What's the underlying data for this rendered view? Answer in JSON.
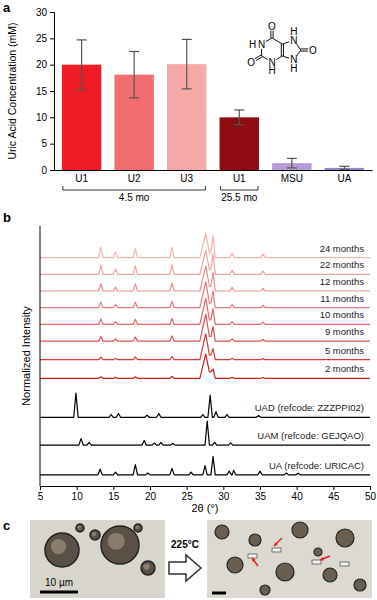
{
  "chart_data": [
    {
      "panel_label": "a",
      "type": "bar",
      "ylabel": "Uric Acid Concentration (mM)",
      "categories": [
        "U1",
        "U2",
        "U3",
        "U1",
        "MSU",
        "UA"
      ],
      "values": [
        20.0,
        18.1,
        20.1,
        10.0,
        1.3,
        0.4
      ],
      "errors": [
        4.7,
        4.4,
        4.7,
        1.4,
        0.9,
        0.3
      ],
      "colors": [
        "#ee1c25",
        "#f26d6f",
        "#f7a9a8",
        "#8e0c11",
        "#b49ad8",
        "#8f86c8"
      ],
      "ylim": [
        0,
        30
      ],
      "yticks": [
        0,
        5,
        10,
        15,
        20,
        25,
        30
      ],
      "annotations": [
        {
          "text": "4.5 mo",
          "from": 0,
          "to": 2
        },
        {
          "text": "25.5 mo",
          "from": 3,
          "to": 3
        }
      ],
      "structure_labels": [
        "O",
        "O",
        "O",
        "N",
        "H",
        "N",
        "H",
        "N",
        "H",
        "N",
        "H"
      ]
    },
    {
      "panel_label": "b",
      "type": "line",
      "xlabel": "2θ (°)",
      "ylabel": "Normalized Intensity",
      "xlim": [
        5,
        50
      ],
      "xticks": [
        5,
        10,
        15,
        20,
        25,
        30,
        35,
        40,
        45,
        50
      ],
      "ylim": [
        0,
        14
      ],
      "tick_labels": "x",
      "series": [
        {
          "name": "24 months",
          "color": "#f4b3b3",
          "x": [
            5,
            13.0,
            13.3,
            13.6,
            15.0,
            15.3,
            15.6,
            17.7,
            18.0,
            18.3,
            22.7,
            23.0,
            23.3,
            26.8,
            27.6,
            28.1,
            28.3,
            28.6,
            28.9,
            30.9,
            31.2,
            31.5,
            35.1,
            35.4,
            35.7,
            50
          ],
          "values": [
            12.3,
            12.3,
            12.85,
            12.3,
            12.3,
            12.6,
            12.3,
            12.3,
            12.8,
            12.3,
            12.3,
            12.85,
            12.3,
            12.3,
            13.6,
            12.55,
            12.55,
            13.5,
            12.3,
            12.3,
            12.55,
            12.3,
            12.3,
            12.5,
            12.3,
            12.3
          ]
        },
        {
          "name": "22 months",
          "color": "#f0a2a2",
          "x": [
            5,
            13.0,
            13.3,
            13.6,
            15.0,
            15.3,
            15.6,
            17.7,
            18.0,
            18.3,
            22.7,
            23.0,
            23.3,
            26.8,
            27.6,
            28.1,
            28.3,
            28.6,
            28.9,
            30.9,
            31.2,
            31.5,
            35.1,
            35.4,
            35.7,
            50
          ],
          "values": [
            11.4,
            11.4,
            11.9,
            11.4,
            11.4,
            11.68,
            11.4,
            11.4,
            11.85,
            11.4,
            11.4,
            11.9,
            11.4,
            11.4,
            12.7,
            11.65,
            11.65,
            12.5,
            11.4,
            11.4,
            11.62,
            11.4,
            11.4,
            11.58,
            11.4,
            11.4
          ]
        },
        {
          "name": "12 months",
          "color": "#ec8f8f",
          "x": [
            5,
            13.0,
            13.3,
            13.6,
            15.0,
            15.3,
            15.6,
            17.7,
            18.0,
            18.3,
            22.7,
            23.0,
            23.3,
            26.8,
            27.6,
            28.1,
            28.3,
            28.6,
            28.9,
            30.9,
            31.2,
            31.5,
            35.1,
            35.4,
            35.7,
            50
          ],
          "values": [
            10.5,
            10.5,
            10.9,
            10.5,
            10.5,
            10.72,
            10.5,
            10.5,
            10.88,
            10.5,
            10.5,
            10.92,
            10.5,
            10.5,
            11.85,
            10.75,
            10.75,
            11.5,
            10.5,
            10.5,
            10.7,
            10.5,
            10.5,
            10.65,
            10.5,
            10.5
          ]
        },
        {
          "name": "11 months",
          "color": "#e87b7b",
          "x": [
            5,
            13.0,
            13.3,
            13.6,
            15.0,
            15.3,
            15.6,
            17.7,
            18.0,
            18.3,
            22.7,
            23.0,
            23.3,
            26.8,
            27.6,
            28.1,
            28.3,
            28.6,
            28.9,
            30.9,
            31.2,
            31.5,
            35.1,
            35.4,
            35.7,
            50
          ],
          "values": [
            9.6,
            9.6,
            9.9,
            9.6,
            9.6,
            9.78,
            9.6,
            9.6,
            9.9,
            9.6,
            9.6,
            9.95,
            9.6,
            9.6,
            11.0,
            9.85,
            9.85,
            10.5,
            9.6,
            9.6,
            9.78,
            9.6,
            9.6,
            9.72,
            9.6,
            9.6
          ]
        },
        {
          "name": "10 months",
          "color": "#e46666",
          "x": [
            5,
            13.0,
            13.3,
            13.6,
            15.0,
            15.3,
            15.6,
            17.7,
            18.0,
            18.3,
            22.7,
            23.0,
            23.3,
            26.8,
            27.6,
            28.1,
            28.3,
            28.6,
            28.9,
            30.9,
            31.2,
            31.5,
            35.1,
            35.4,
            35.7,
            50
          ],
          "values": [
            8.7,
            8.7,
            9.0,
            8.7,
            8.7,
            8.85,
            8.7,
            8.7,
            8.98,
            8.7,
            8.7,
            9.02,
            8.7,
            8.7,
            10.1,
            8.95,
            8.95,
            9.55,
            8.7,
            8.7,
            8.85,
            8.7,
            8.7,
            8.82,
            8.7,
            8.7
          ]
        },
        {
          "name": "9 months",
          "color": "#df5151",
          "x": [
            5,
            13.0,
            13.3,
            13.6,
            15.0,
            15.3,
            15.6,
            17.7,
            18.0,
            18.3,
            22.7,
            23.0,
            23.3,
            26.8,
            27.6,
            28.1,
            28.3,
            28.6,
            28.9,
            30.9,
            31.2,
            31.5,
            35.1,
            35.4,
            35.7,
            50
          ],
          "values": [
            7.8,
            7.8,
            8.05,
            7.8,
            7.8,
            7.92,
            7.8,
            7.8,
            8.02,
            7.8,
            7.8,
            8.08,
            7.8,
            7.8,
            9.25,
            8.05,
            8.05,
            8.6,
            7.8,
            7.8,
            7.92,
            7.8,
            7.8,
            7.9,
            7.8,
            7.8
          ]
        },
        {
          "name": "5 months",
          "color": "#da3a3a",
          "x": [
            5,
            13.0,
            13.3,
            13.6,
            15.0,
            15.3,
            15.6,
            17.7,
            18.0,
            18.3,
            22.7,
            23.0,
            23.3,
            26.8,
            27.6,
            28.1,
            28.3,
            28.6,
            28.9,
            30.9,
            31.2,
            31.5,
            35.1,
            35.4,
            35.7,
            50
          ],
          "values": [
            6.8,
            6.8,
            6.95,
            6.8,
            6.8,
            6.88,
            6.8,
            6.8,
            6.95,
            6.8,
            6.8,
            6.98,
            6.8,
            6.8,
            8.2,
            7.05,
            7.05,
            7.4,
            6.8,
            6.8,
            6.88,
            6.8,
            6.8,
            6.86,
            6.8,
            6.8
          ]
        },
        {
          "name": "2 months",
          "color": "#d21f1f",
          "x": [
            5,
            13.0,
            13.3,
            13.6,
            15.0,
            15.3,
            15.6,
            17.7,
            18.0,
            18.3,
            22.7,
            23.0,
            23.3,
            26.8,
            27.6,
            28.1,
            28.3,
            28.6,
            28.9,
            30.9,
            31.2,
            31.5,
            35.1,
            35.4,
            35.7,
            50
          ],
          "values": [
            5.8,
            5.8,
            5.88,
            5.8,
            5.8,
            5.85,
            5.8,
            5.8,
            5.88,
            5.8,
            5.8,
            5.9,
            5.8,
            5.8,
            7.1,
            6.15,
            6.15,
            6.3,
            5.8,
            5.8,
            5.85,
            5.8,
            5.8,
            5.84,
            5.8,
            5.8
          ]
        },
        {
          "name": "UAD (refcode: ZZZPPI02)",
          "color": "#000000",
          "x": [
            5,
            9.6,
            9.9,
            10.2,
            14.4,
            14.7,
            15.0,
            15.4,
            15.7,
            16.0,
            19.3,
            19.6,
            19.9,
            20.9,
            21.2,
            21.5,
            26.9,
            27.2,
            27.5,
            27.9,
            28.2,
            28.5,
            28.7,
            29.0,
            29.3,
            30.2,
            30.5,
            30.8,
            34.5,
            34.8,
            35.1,
            50
          ],
          "values": [
            3.7,
            3.7,
            5.0,
            3.7,
            3.7,
            3.85,
            3.7,
            3.7,
            3.9,
            3.7,
            3.7,
            3.82,
            3.7,
            3.7,
            3.9,
            3.7,
            3.7,
            3.85,
            3.7,
            3.7,
            4.9,
            3.7,
            3.7,
            4.0,
            3.7,
            3.7,
            3.85,
            3.7,
            3.7,
            3.8,
            3.7,
            3.7
          ]
        },
        {
          "name": "UAM (refcode: GEJQAO)",
          "color": "#000000",
          "x": [
            5,
            10.3,
            10.6,
            10.9,
            11.4,
            11.7,
            12.0,
            18.9,
            19.2,
            19.5,
            20.3,
            20.6,
            20.9,
            21.2,
            21.5,
            21.8,
            22.8,
            23.1,
            23.4,
            27.5,
            27.8,
            28.1,
            28.5,
            28.8,
            29.1,
            30.7,
            31.0,
            31.3,
            50
          ],
          "values": [
            2.2,
            2.2,
            2.55,
            2.2,
            2.2,
            2.35,
            2.2,
            2.2,
            2.45,
            2.2,
            2.2,
            2.32,
            2.2,
            2.2,
            2.35,
            2.2,
            2.2,
            2.3,
            2.2,
            2.2,
            3.5,
            2.2,
            2.2,
            2.35,
            2.2,
            2.2,
            2.32,
            2.2,
            2.2
          ]
        },
        {
          "name": "UA (refcode: URICAC)",
          "color": "#000000",
          "x": [
            5,
            12.9,
            13.2,
            13.5,
            15.0,
            15.3,
            15.6,
            17.7,
            18.0,
            18.3,
            19.4,
            19.7,
            20.0,
            22.7,
            23.0,
            23.3,
            25.3,
            25.6,
            25.9,
            27.2,
            27.5,
            27.8,
            28.3,
            28.6,
            28.9,
            30.5,
            30.8,
            31.1,
            31.2,
            31.4,
            31.7,
            34.7,
            35.0,
            35.3,
            38.3,
            38.6,
            38.9,
            39.9,
            40.2,
            40.5,
            50
          ],
          "values": [
            0.6,
            0.6,
            0.9,
            0.6,
            0.6,
            0.75,
            0.6,
            0.6,
            1.15,
            0.6,
            0.6,
            0.7,
            0.6,
            0.6,
            0.95,
            0.6,
            0.6,
            0.75,
            0.6,
            0.6,
            1.1,
            0.6,
            0.6,
            1.6,
            0.6,
            0.6,
            0.8,
            0.6,
            0.6,
            0.85,
            0.6,
            0.6,
            0.8,
            0.6,
            0.6,
            0.7,
            0.6,
            0.6,
            0.68,
            0.6,
            0.6
          ]
        }
      ]
    }
  ],
  "panel_c": {
    "panel_label": "c",
    "arrow_label": "225°C",
    "scale_bar_label": "10 µm"
  }
}
